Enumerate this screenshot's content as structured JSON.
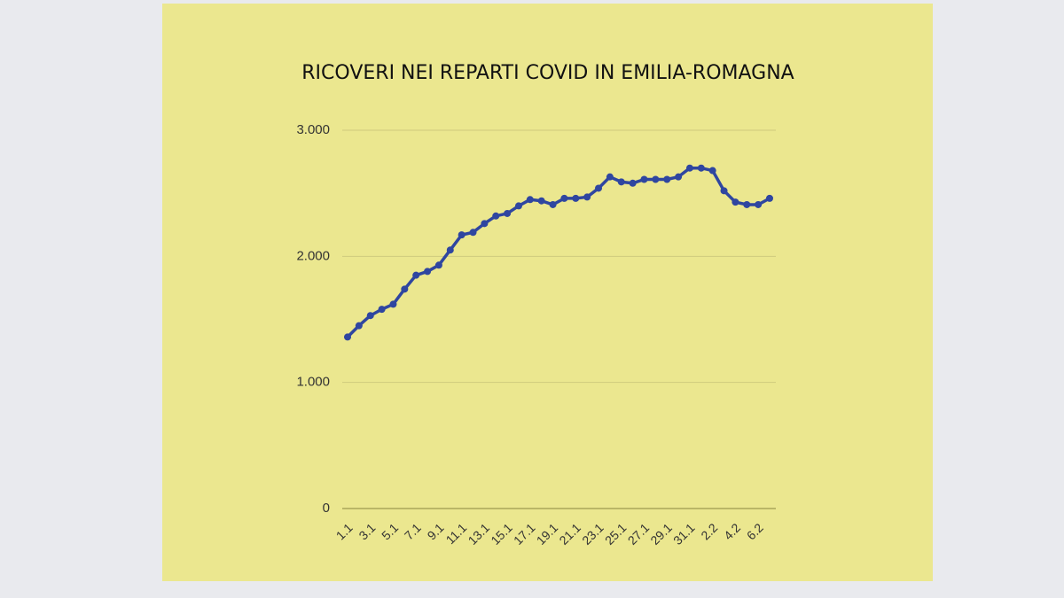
{
  "chart_data": {
    "type": "line",
    "title": "RICOVERI NEI REPARTI COVID IN EMILIA-ROMAGNA",
    "categories": [
      "1.1",
      null,
      "3.1",
      null,
      "5.1",
      null,
      "7.1",
      null,
      "9.1",
      null,
      "11.1",
      null,
      "13.1",
      null,
      "15.1",
      null,
      "17.1",
      null,
      "19.1",
      null,
      "21.1",
      null,
      "23.1",
      null,
      "25.1",
      null,
      "27.1",
      null,
      "29.1",
      null,
      "31.1",
      null,
      "2.2",
      null,
      "4.2",
      null,
      "6.2",
      null
    ],
    "values": [
      1360,
      1450,
      1530,
      1580,
      1620,
      1740,
      1850,
      1880,
      1930,
      2050,
      2170,
      2190,
      2260,
      2320,
      2340,
      2400,
      2450,
      2440,
      2410,
      2460,
      2460,
      2470,
      2540,
      2630,
      2590,
      2580,
      2610,
      2610,
      2610,
      2630,
      2700,
      2700,
      2680,
      2520,
      2430,
      2410,
      2410,
      2460
    ],
    "color": "#2f46a0",
    "ylim": [
      0,
      3000
    ],
    "yticks": [
      0,
      {
        "value": 1000,
        "label": "1.000"
      },
      {
        "value": 2000,
        "label": "2.000"
      },
      {
        "value": 3000,
        "label": "3.000"
      }
    ],
    "grid": true
  }
}
